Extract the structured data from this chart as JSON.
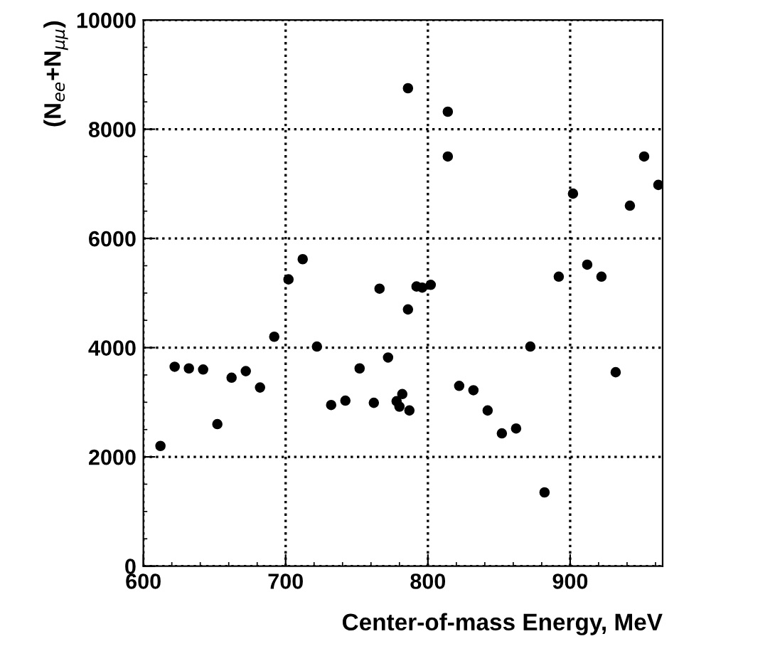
{
  "chart_data": {
    "type": "scatter",
    "xlabel": "Center-of-mass Energy, MeV",
    "ylabel": "(N$_{ee}$+N$_{μμ}$)",
    "x": [
      612,
      622,
      632,
      642,
      652,
      662,
      672,
      682,
      692,
      702,
      712,
      722,
      732,
      742,
      752,
      762,
      766,
      772,
      778,
      780,
      782,
      786,
      786,
      787,
      792,
      796,
      802,
      814,
      814,
      822,
      832,
      842,
      852,
      862,
      872,
      882,
      892,
      902,
      912,
      922,
      932,
      942,
      952,
      962
    ],
    "series": [
      {
        "color": "#000000",
        "values": [
          2200,
          3650,
          3620,
          3600,
          2600,
          3450,
          3570,
          3270,
          4200,
          5250,
          5620,
          4020,
          2950,
          3030,
          3620,
          2990,
          5080,
          3820,
          3020,
          2920,
          3150,
          8750,
          4700,
          2850,
          5120,
          5100,
          5150,
          8320,
          7500,
          3300,
          3220,
          2850,
          2430,
          2520,
          4020,
          1350,
          5300,
          6820,
          5520,
          5300,
          3550,
          6600,
          7500,
          6980
        ]
      }
    ],
    "xlim": [
      600,
      965
    ],
    "ylim": [
      0,
      10000
    ],
    "xticks": [
      600,
      700,
      800,
      900
    ],
    "yticks": [
      0,
      2000,
      4000,
      6000,
      8000,
      10000
    ],
    "grid": true,
    "marker": "circle",
    "legend": false
  }
}
